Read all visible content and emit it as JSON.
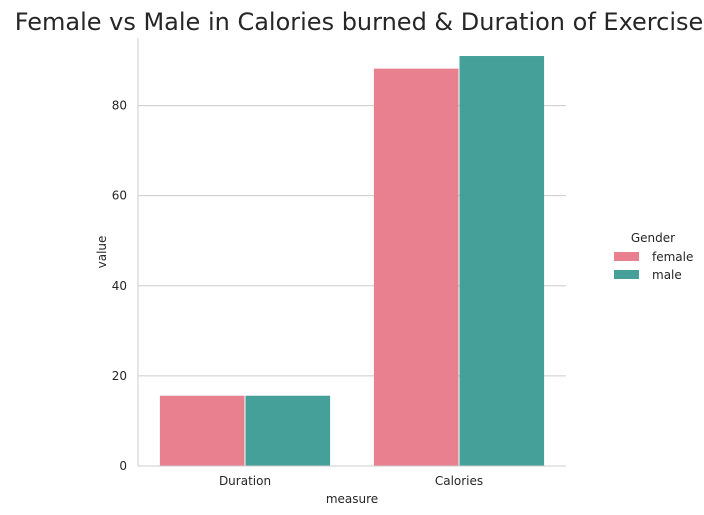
{
  "chart_data": {
    "type": "bar",
    "title": "Female vs Male in Calories burned & Duration of Exercise",
    "xlabel": "measure",
    "ylabel": "value",
    "categories": [
      "Duration",
      "Calories"
    ],
    "series": [
      {
        "name": "female",
        "values": [
          15.6,
          88.2
        ],
        "color": "#e8808f"
      },
      {
        "name": "male",
        "values": [
          15.6,
          91.0
        ],
        "color": "#44a098"
      }
    ],
    "ylim": [
      0,
      95
    ],
    "yticks": [
      0,
      20,
      40,
      60,
      80
    ],
    "grid": "horizontal",
    "legend": {
      "title": "Gender",
      "position": "right"
    }
  }
}
